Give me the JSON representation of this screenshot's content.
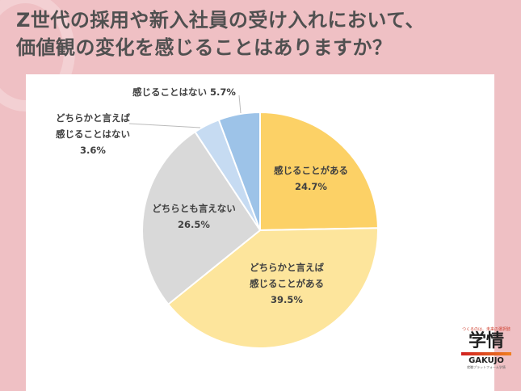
{
  "title_lines": [
    "Z世代の採用や新入社員の受け入れにおいて、",
    "価値観の変化を感じることはありますか？"
  ],
  "logo": {
    "tagline": "つくるのは、未来の選択肢",
    "kanji": "学情",
    "latin": "GAKUJO",
    "sub": "就職プラットフォーム学情"
  },
  "chart_data": {
    "type": "pie",
    "start": "top",
    "direction": "clockwise",
    "slices": [
      {
        "label": [
          "感じることがある"
        ],
        "value": 24.7,
        "display": "24.7%",
        "color": "#fcd166"
      },
      {
        "label": [
          "どちらかと言えば",
          "感じることがある"
        ],
        "value": 39.5,
        "display": "39.5%",
        "color": "#fde59c"
      },
      {
        "label": [
          "どちらとも言えない"
        ],
        "value": 26.5,
        "display": "26.5%",
        "color": "#d9d9d9"
      },
      {
        "label": [
          "どちらかと言えば",
          "感じることはない"
        ],
        "value": 3.6,
        "display": "3.6%",
        "color": "#c6dbf2"
      },
      {
        "label": [
          "感じることはない"
        ],
        "value": 5.7,
        "display": "5.7%",
        "color": "#9dc3e8"
      }
    ]
  }
}
